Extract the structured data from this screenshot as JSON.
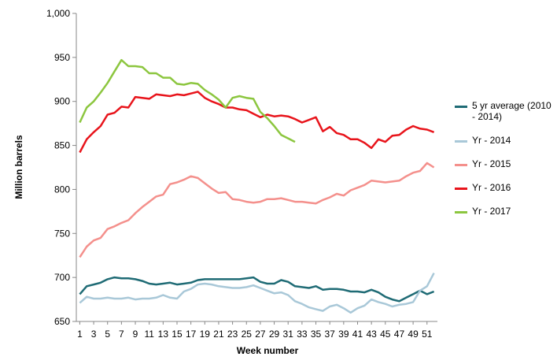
{
  "chart_data": {
    "type": "line",
    "x_label": "Week number",
    "y_label": "Million barrels",
    "x": [
      1,
      2,
      3,
      4,
      5,
      6,
      7,
      8,
      9,
      10,
      11,
      12,
      13,
      14,
      15,
      16,
      17,
      18,
      19,
      20,
      21,
      22,
      23,
      24,
      25,
      26,
      27,
      28,
      29,
      30,
      31,
      32,
      33,
      34,
      35,
      36,
      37,
      38,
      39,
      40,
      41,
      42,
      43,
      44,
      45,
      46,
      47,
      48,
      49,
      50,
      51,
      52
    ],
    "xlim": [
      0.5,
      52.5
    ],
    "xticks": [
      1,
      3,
      5,
      7,
      9,
      11,
      13,
      15,
      17,
      19,
      21,
      23,
      25,
      27,
      29,
      31,
      33,
      35,
      37,
      39,
      41,
      43,
      45,
      47,
      49,
      51
    ],
    "ylim": [
      650,
      1000
    ],
    "yticks": [
      650,
      700,
      750,
      800,
      850,
      900,
      950,
      {
        "value": 1000,
        "label": "1,000"
      }
    ],
    "grid": false,
    "legend": "right",
    "series": [
      {
        "name": "5 yr average (2010 - 2014)",
        "color": "#1f6b75",
        "values": [
          681,
          690,
          692,
          694,
          698,
          700,
          699,
          699,
          698,
          696,
          693,
          692,
          693,
          694,
          692,
          693,
          694,
          697,
          698,
          698,
          698,
          698,
          698,
          698,
          699,
          700,
          695,
          693,
          693,
          697,
          695,
          690,
          689,
          688,
          690,
          686,
          687,
          687,
          686,
          684,
          684,
          683,
          686,
          683,
          678,
          675,
          673,
          677,
          681,
          685,
          681,
          684
        ]
      },
      {
        "name": "Yr - 2014",
        "color": "#a9c8d8",
        "values": [
          671,
          678,
          676,
          676,
          677,
          676,
          676,
          677,
          675,
          676,
          676,
          677,
          680,
          677,
          676,
          684,
          687,
          692,
          693,
          692,
          690,
          689,
          688,
          688,
          689,
          691,
          688,
          685,
          682,
          683,
          680,
          673,
          670,
          666,
          664,
          662,
          667,
          669,
          665,
          660,
          665,
          668,
          675,
          672,
          670,
          667,
          669,
          670,
          672,
          685,
          690,
          705
        ]
      },
      {
        "name": "Yr - 2015",
        "color": "#f4908c",
        "values": [
          723,
          735,
          742,
          745,
          755,
          758,
          762,
          765,
          773,
          780,
          786,
          792,
          794,
          806,
          808,
          811,
          815,
          813,
          807,
          801,
          796,
          797,
          789,
          788,
          786,
          785,
          786,
          789,
          789,
          790,
          788,
          786,
          786,
          785,
          784,
          788,
          791,
          795,
          793,
          799,
          802,
          805,
          810,
          809,
          808,
          809,
          810,
          815,
          819,
          821,
          830,
          825
        ]
      },
      {
        "name": "Yr - 2016",
        "color": "#e8141b",
        "values": [
          842,
          857,
          865,
          872,
          885,
          887,
          894,
          893,
          905,
          904,
          903,
          908,
          907,
          906,
          908,
          907,
          909,
          911,
          904,
          900,
          897,
          893,
          893,
          891,
          890,
          886,
          882,
          885,
          883,
          884,
          883,
          880,
          876,
          879,
          882,
          866,
          871,
          864,
          862,
          857,
          857,
          853,
          847,
          857,
          854,
          861,
          862,
          868,
          872,
          869,
          868,
          865
        ]
      },
      {
        "name": "Yr - 2017",
        "color": "#8cc63f",
        "values": [
          876,
          893,
          900,
          910,
          921,
          934,
          947,
          940,
          940,
          939,
          932,
          932,
          927,
          927,
          920,
          919,
          921,
          920,
          913,
          908,
          902,
          893,
          904,
          906,
          904,
          903,
          888,
          881,
          872,
          862,
          858,
          854,
          null,
          null,
          null,
          null,
          null,
          null,
          null,
          null,
          null,
          null,
          null,
          null,
          null,
          null,
          null,
          null,
          null,
          null,
          null,
          null
        ]
      }
    ]
  }
}
